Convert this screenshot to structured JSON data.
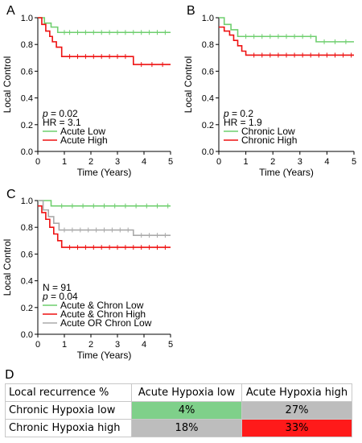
{
  "chart_data": [
    {
      "panel": "A",
      "type": "line",
      "step": true,
      "xlabel": "Time (Years)",
      "ylabel": "Local Control",
      "xlim": [
        0,
        5
      ],
      "ylim": [
        0,
        1.0
      ],
      "xticks": [
        "0",
        "1",
        "2",
        "3",
        "4",
        "5"
      ],
      "yticks": [
        "0.0",
        "0.2",
        "0.4",
        "0.6",
        "0.8",
        "1.0"
      ],
      "annotations": [
        {
          "prefix": "p",
          "text": " = 0.02"
        },
        {
          "prefix": "",
          "text": "HR = 3.1"
        }
      ],
      "legend_position": "bottom-left",
      "series": [
        {
          "name": "Acute Low",
          "color": "#6fcf6f",
          "x": [
            0,
            0.25,
            0.5,
            0.75,
            5
          ],
          "y": [
            1.0,
            0.96,
            0.93,
            0.89,
            0.89
          ],
          "censor": [
            1.0,
            1.2,
            1.5,
            1.8,
            2.1,
            2.4,
            2.7,
            3.0,
            3.3,
            3.6,
            3.9,
            4.2,
            4.5,
            4.8
          ]
        },
        {
          "name": "Acute High",
          "color": "#ee1111",
          "x": [
            0,
            0.15,
            0.3,
            0.45,
            0.55,
            0.7,
            0.9,
            3.6,
            5
          ],
          "y": [
            1.0,
            0.95,
            0.9,
            0.86,
            0.82,
            0.78,
            0.71,
            0.65,
            0.65
          ],
          "censor": [
            1.2,
            1.5,
            1.8,
            2.1,
            2.4,
            2.7,
            3.0,
            3.3,
            3.9,
            4.3,
            4.7
          ]
        }
      ]
    },
    {
      "panel": "B",
      "type": "line",
      "step": true,
      "xlabel": "Time (Years)",
      "ylabel": "Local Control",
      "xlim": [
        0,
        5
      ],
      "ylim": [
        0,
        1.0
      ],
      "xticks": [
        "0",
        "1",
        "2",
        "3",
        "4",
        "5"
      ],
      "yticks": [
        "0.0",
        "0.2",
        "0.4",
        "0.6",
        "0.8",
        "1.0"
      ],
      "annotations": [
        {
          "prefix": "p",
          "text": " = 0.2"
        },
        {
          "prefix": "",
          "text": "HR = 1.9"
        }
      ],
      "legend_position": "bottom-left",
      "series": [
        {
          "name": "Chronic Low",
          "color": "#6fcf6f",
          "x": [
            0,
            0.2,
            0.45,
            0.7,
            3.6,
            5
          ],
          "y": [
            1.0,
            0.95,
            0.91,
            0.86,
            0.82,
            0.82
          ],
          "censor": [
            1.0,
            1.3,
            1.6,
            1.9,
            2.2,
            2.5,
            2.8,
            3.1,
            3.4,
            3.9,
            4.3,
            4.7
          ]
        },
        {
          "name": "Chronic High",
          "color": "#ee1111",
          "x": [
            0,
            0.2,
            0.4,
            0.55,
            0.7,
            0.85,
            1.0,
            5
          ],
          "y": [
            0.93,
            0.9,
            0.87,
            0.83,
            0.79,
            0.75,
            0.72,
            0.72
          ],
          "censor": [
            1.3,
            1.6,
            1.9,
            2.2,
            2.5,
            2.8,
            3.1,
            3.4,
            3.7,
            4.0,
            4.3,
            4.6,
            4.9
          ]
        }
      ]
    },
    {
      "panel": "C",
      "type": "line",
      "step": true,
      "xlabel": "Time (Years)",
      "ylabel": "Local Control",
      "xlim": [
        0,
        5
      ],
      "ylim": [
        0,
        1.0
      ],
      "xticks": [
        "0",
        "1",
        "2",
        "3",
        "4",
        "5"
      ],
      "yticks": [
        "0.0",
        "0.2",
        "0.4",
        "0.6",
        "0.8",
        "1.0"
      ],
      "annotations": [
        {
          "prefix": "",
          "text": "N = 91"
        },
        {
          "prefix": "p",
          "text": " = 0.04"
        }
      ],
      "legend_position": "bottom-left",
      "series": [
        {
          "name": "Acute & Chron Low",
          "color": "#6fcf6f",
          "x": [
            0,
            0.5,
            5
          ],
          "y": [
            1.0,
            0.96,
            0.96
          ],
          "censor": [
            0.9,
            1.3,
            1.7,
            2.1,
            2.5,
            2.9,
            3.3,
            3.7,
            4.1,
            4.5,
            4.9
          ]
        },
        {
          "name": "Acute & Chron High",
          "color": "#ee1111",
          "x": [
            0,
            0.15,
            0.3,
            0.45,
            0.6,
            0.75,
            0.9,
            5
          ],
          "y": [
            0.96,
            0.91,
            0.86,
            0.8,
            0.75,
            0.7,
            0.65,
            0.65
          ],
          "censor": [
            1.2,
            1.5,
            1.8,
            2.1,
            2.4,
            2.7,
            3.0,
            3.3,
            3.6,
            3.9,
            4.2,
            4.5,
            4.8
          ]
        },
        {
          "name": "Acute OR Chron Low",
          "color": "#aaaaaa",
          "x": [
            0,
            0.2,
            0.4,
            0.6,
            0.8,
            3.6,
            5
          ],
          "y": [
            1.0,
            0.93,
            0.88,
            0.83,
            0.78,
            0.74,
            0.74
          ],
          "censor": [
            1.0,
            1.3,
            1.6,
            1.9,
            2.2,
            2.5,
            2.8,
            3.1,
            3.4,
            3.9,
            4.2,
            4.5,
            4.8
          ]
        }
      ]
    },
    {
      "panel": "D",
      "type": "table",
      "header": [
        "Local recurrence %",
        "Acute Hypoxia low",
        "Acute Hypoxia high"
      ],
      "rows": [
        {
          "label": "Chronic Hypoxia low",
          "cells": [
            {
              "value": "4%",
              "color": "#7fd08a"
            },
            {
              "value": "27%",
              "color": "#bdbdbd"
            }
          ]
        },
        {
          "label": "Chronic Hypoxia high",
          "cells": [
            {
              "value": "18%",
              "color": "#bdbdbd"
            },
            {
              "value": "33%",
              "color": "#ff1a1a"
            }
          ]
        }
      ]
    }
  ]
}
